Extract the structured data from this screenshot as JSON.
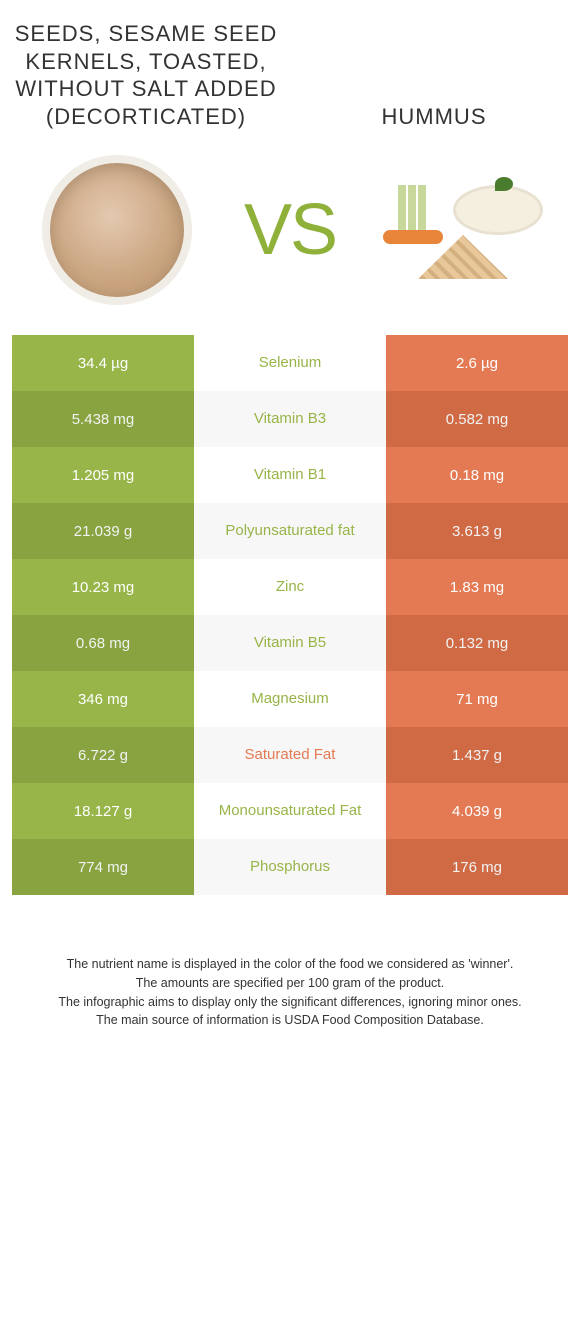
{
  "colors": {
    "left": "#97b548",
    "right": "#e37a53",
    "rowAltLeft": "#8fac42",
    "rowAltRight": "#db7048",
    "winnerLeft": "#97b548",
    "winnerRight": "#e37a53",
    "vs": "#8fb13a"
  },
  "header": {
    "leftTitle": "Seeds, sesame seed kernels, toasted, without salt added (decorticated)",
    "rightTitle": "Hummus",
    "vs": "VS"
  },
  "rows": [
    {
      "nutrient": "Selenium",
      "left": "34.4 µg",
      "right": "2.6 µg",
      "winner": "left"
    },
    {
      "nutrient": "Vitamin B3",
      "left": "5.438 mg",
      "right": "0.582 mg",
      "winner": "left"
    },
    {
      "nutrient": "Vitamin B1",
      "left": "1.205 mg",
      "right": "0.18 mg",
      "winner": "left"
    },
    {
      "nutrient": "Polyunsaturated fat",
      "left": "21.039 g",
      "right": "3.613 g",
      "winner": "left"
    },
    {
      "nutrient": "Zinc",
      "left": "10.23 mg",
      "right": "1.83 mg",
      "winner": "left"
    },
    {
      "nutrient": "Vitamin B5",
      "left": "0.68 mg",
      "right": "0.132 mg",
      "winner": "left"
    },
    {
      "nutrient": "Magnesium",
      "left": "346 mg",
      "right": "71 mg",
      "winner": "left"
    },
    {
      "nutrient": "Saturated Fat",
      "left": "6.722 g",
      "right": "1.437 g",
      "winner": "right"
    },
    {
      "nutrient": "Monounsaturated Fat",
      "left": "18.127 g",
      "right": "4.039 g",
      "winner": "left"
    },
    {
      "nutrient": "Phosphorus",
      "left": "774 mg",
      "right": "176 mg",
      "winner": "left"
    }
  ],
  "footer": [
    "The nutrient name is displayed in the color of the food we considered as 'winner'.",
    "The amounts are specified per 100 gram of the product.",
    "The infographic aims to display only the significant differences, ignoring minor ones.",
    "The main source of information is USDA Food Composition Database."
  ]
}
